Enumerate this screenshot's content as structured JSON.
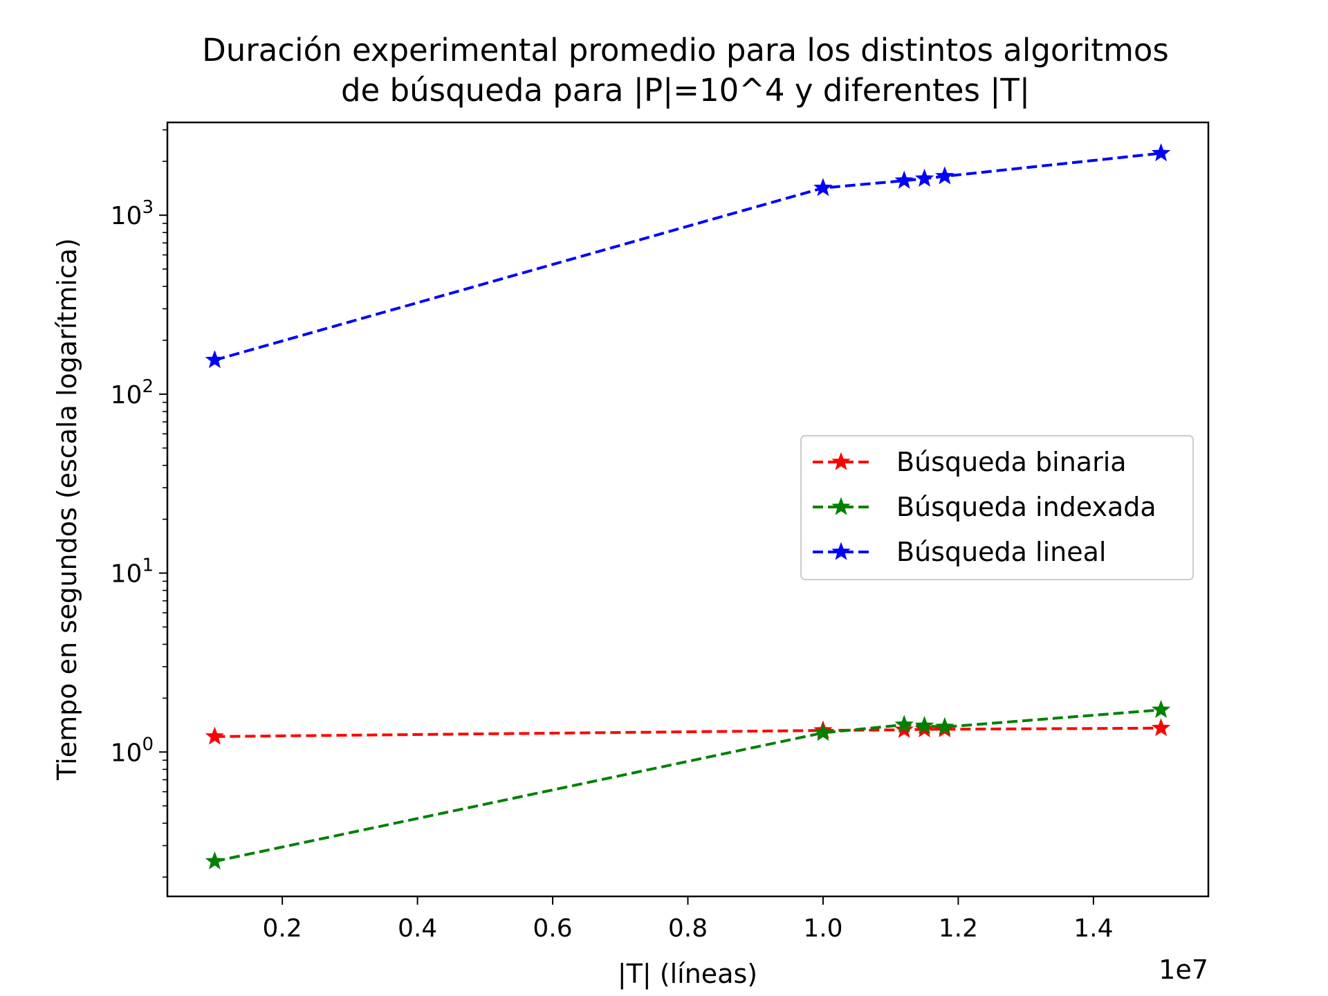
{
  "chart_data": {
    "type": "line",
    "title_lines": [
      "Duración experimental promedio para los distintos algoritmos",
      "de búsqueda para |P|=10^4 y diferentes |T|"
    ],
    "xlabel": "|T| (líneas)",
    "ylabel": "Tiempo en segundos (escala logarítmica)",
    "x_offset_label": "1e7",
    "yscale": "log",
    "xlim": [
      300000,
      15700000
    ],
    "ylim": [
      0.156,
      3300
    ],
    "x_ticks": [
      {
        "value": 2000000,
        "label": "0.2"
      },
      {
        "value": 4000000,
        "label": "0.4"
      },
      {
        "value": 6000000,
        "label": "0.6"
      },
      {
        "value": 8000000,
        "label": "0.8"
      },
      {
        "value": 10000000,
        "label": "1.0"
      },
      {
        "value": 12000000,
        "label": "1.2"
      },
      {
        "value": 14000000,
        "label": "1.4"
      }
    ],
    "y_ticks": [
      {
        "value": 1,
        "base": "10",
        "exp": "0"
      },
      {
        "value": 10,
        "base": "10",
        "exp": "1"
      },
      {
        "value": 100,
        "base": "10",
        "exp": "2"
      },
      {
        "value": 1000,
        "base": "10",
        "exp": "3"
      }
    ],
    "x": [
      1000000,
      10000000,
      11200000,
      11500000,
      11800000,
      15000000
    ],
    "series": [
      {
        "name": "Búsqueda binaria",
        "color": "#ff0000",
        "values": [
          1.22,
          1.32,
          1.33,
          1.34,
          1.34,
          1.36
        ]
      },
      {
        "name": "Búsqueda indexada",
        "color": "#008000",
        "values": [
          0.245,
          1.28,
          1.42,
          1.4,
          1.38,
          1.72
        ]
      },
      {
        "name": "Búsqueda lineal",
        "color": "#0000ff",
        "values": [
          155,
          1420,
          1560,
          1600,
          1650,
          2220
        ]
      }
    ],
    "legend_position": "center-right",
    "grid": false,
    "line_style": "dashed",
    "marker": "star"
  }
}
